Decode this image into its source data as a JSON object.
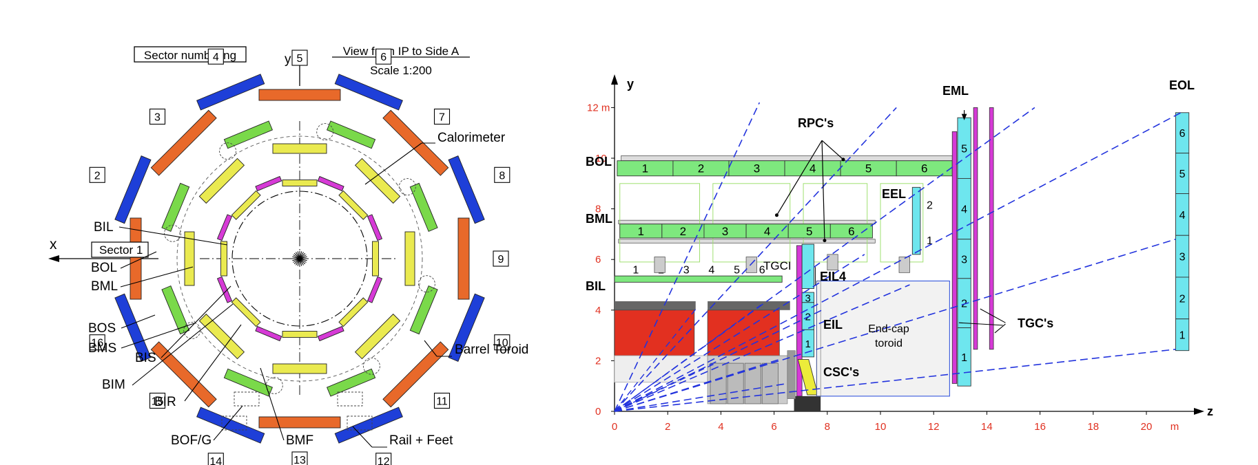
{
  "left_view": {
    "sector_numbering": "Sector numbering",
    "view_line1": "View from IP to Side A",
    "view_line2": "Scale 1:200",
    "axis_y": "y",
    "axis_x": "x",
    "sector1": "Sector 1",
    "sector_numbers": [
      "1",
      "2",
      "3",
      "4",
      "5",
      "6",
      "7",
      "8",
      "9",
      "10",
      "11",
      "12",
      "13",
      "14",
      "15",
      "16"
    ],
    "labels": {
      "calorimeter": "Calorimeter",
      "bil": "BIL",
      "bol": "BOL",
      "bml": "BML",
      "bos": "BOS",
      "bms": "BMS",
      "bis": "BIS",
      "bim": "BIM",
      "bir": "BIR",
      "bofg": "BOF/G",
      "bmf": "BMF",
      "barrel_toroid": "Barrel Toroid",
      "rail_feet": "Rail + Feet"
    },
    "colors": {
      "outer": "#e8692a",
      "outer_blue": "#1e3fd8",
      "middle": "#7ad94a",
      "inner": "#eaea50",
      "pink": "#d63ad6"
    }
  },
  "right_view": {
    "axis_y": "y",
    "axis_z": "z",
    "unit_m": "m",
    "y_ticks": [
      "0",
      "2",
      "4",
      "6",
      "8",
      "10",
      "12 m"
    ],
    "z_ticks": [
      "0",
      "2",
      "4",
      "6",
      "8",
      "10",
      "12",
      "14",
      "16",
      "18",
      "20",
      "m"
    ],
    "labels": {
      "bol": "BOL",
      "bml": "BML",
      "bil": "BIL",
      "eel": "EEL",
      "eml": "EML",
      "eol": "EOL",
      "eil": "EIL",
      "eil4": "EIL4",
      "tgci": "TGCI",
      "rpcs": "RPC's",
      "tgcs": "TGC's",
      "cscs": "CSC's",
      "endcap1": "End-cap",
      "endcap2": "toroid"
    },
    "bol_chambers": [
      "1",
      "2",
      "3",
      "4",
      "5",
      "6"
    ],
    "bml_chambers": [
      "1",
      "2",
      "3",
      "4",
      "5",
      "6"
    ],
    "bil_chambers": [
      "1",
      "2",
      "3",
      "4",
      "5",
      "6"
    ],
    "eel_chambers": [
      "2",
      "1"
    ],
    "eil_chambers": [
      "3",
      "2",
      "1"
    ],
    "eml_chambers": [
      "5",
      "4",
      "3",
      "2",
      "1"
    ],
    "eol_chambers": [
      "6",
      "5",
      "4",
      "3",
      "2",
      "1"
    ],
    "colors": {
      "green": "#7ee87e",
      "cyan": "#6ee6ee",
      "magenta": "#d63ad6",
      "red": "#e23020",
      "gray": "#bdbdbd",
      "dark": "#333333",
      "blue_dash": "#2233dd",
      "tick_red": "#e03020",
      "yellow": "#ecec3a"
    }
  }
}
